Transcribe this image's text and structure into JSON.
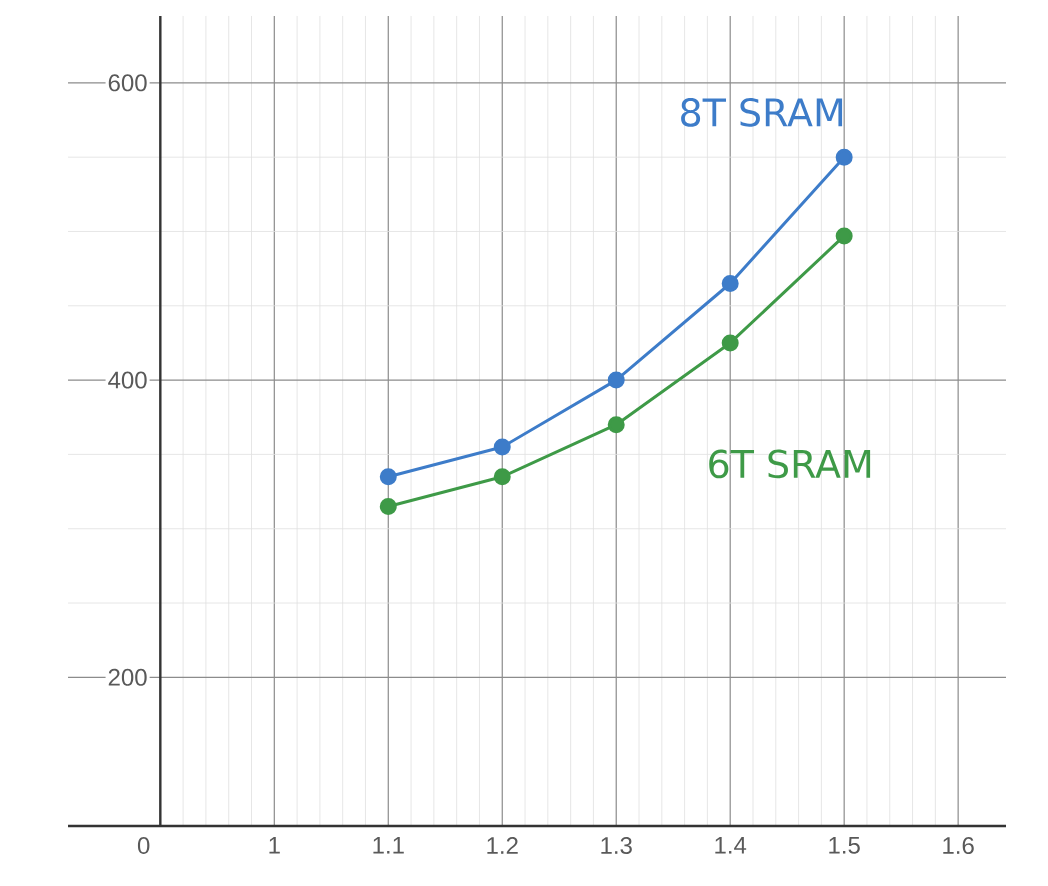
{
  "chart_data": {
    "type": "line",
    "categories": [
      "0",
      "1",
      "1.1",
      "1.2",
      "1.3",
      "1.4",
      "1.5",
      "1.6"
    ],
    "series": [
      {
        "name": "8T SRAM",
        "color": "#3d7cc9",
        "values": [
          null,
          null,
          335,
          355,
          400,
          465,
          550,
          null
        ]
      },
      {
        "name": "6T SRAM",
        "color": "#3e9a47",
        "values": [
          null,
          null,
          315,
          335,
          370,
          425,
          497,
          null
        ]
      }
    ],
    "ylim": [
      100,
      645
    ],
    "yticks": [
      200,
      400,
      600
    ],
    "grid": true,
    "marker": "circle",
    "line_style": "solid"
  }
}
